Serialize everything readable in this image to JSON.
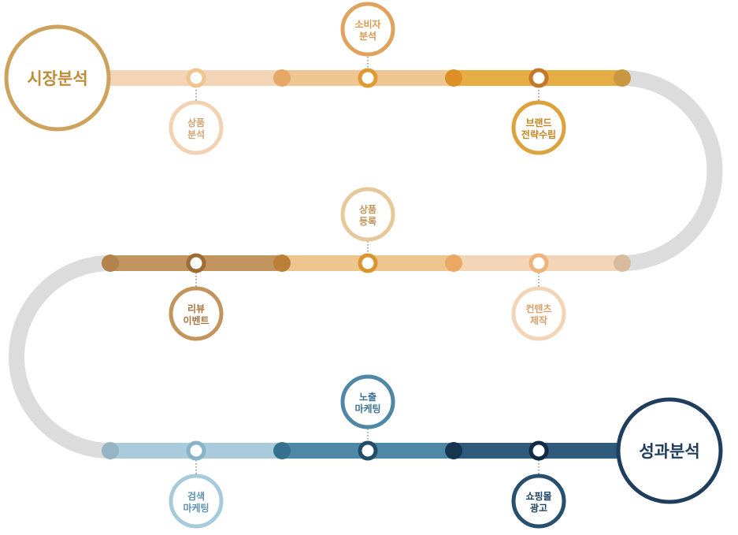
{
  "start": {
    "label": "시장분석",
    "color": "#cda25c"
  },
  "end": {
    "label": "성과분석",
    "color": "#1f3d5c"
  },
  "stations": [
    {
      "line1": "소비자",
      "line2": "분석",
      "ring": "#dfa35e",
      "text": "#d79a50"
    },
    {
      "line1": "상품",
      "line2": "분석",
      "ring": "#f2d2b2",
      "text": "#d4a373"
    },
    {
      "line1": "브랜드",
      "line2": "전략수립",
      "ring": "#dca23c",
      "text": "#c58520"
    },
    {
      "line1": "상품",
      "line2": "등록",
      "ring": "#e6c99a",
      "text": "#c0955a"
    },
    {
      "line1": "리뷰",
      "line2": "이벤트",
      "ring": "#c3945c",
      "text": "#a87440"
    },
    {
      "line1": "컨텐츠",
      "line2": "제작",
      "ring": "#f3d4b6",
      "text": "#d8a06a"
    },
    {
      "line1": "노출",
      "line2": "마케팅",
      "ring": "#4f87a6",
      "text": "#3d7290"
    },
    {
      "line1": "검색",
      "line2": "마케팅",
      "ring": "#a8cbdc",
      "text": "#5d93b1"
    },
    {
      "line1": "쇼핑몰",
      "line2": "광고",
      "ring": "#27506f",
      "text": "#1f4563"
    }
  ]
}
